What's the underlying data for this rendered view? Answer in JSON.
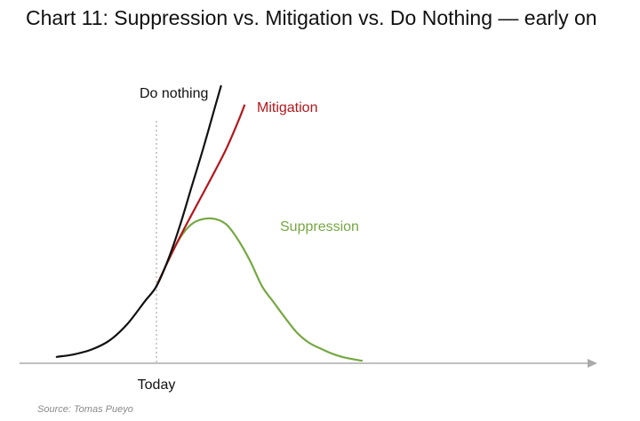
{
  "chart_data": {
    "type": "line",
    "title": "Chart 11: Suppression vs. Mitigation vs. Do Nothing — early on",
    "xlabel": "",
    "ylabel": "",
    "xlim": [
      -1.0,
      2.2
    ],
    "ylim": [
      0,
      100
    ],
    "grid": false,
    "x_tick_labels": [
      {
        "x": 0,
        "label": "Today"
      }
    ],
    "reference_lines": [
      {
        "type": "vertical",
        "x": 0,
        "style": "dotted"
      }
    ],
    "series": [
      {
        "name": "Do nothing",
        "color": "#111111",
        "x": [
          -0.85,
          -0.7,
          -0.55,
          -0.4,
          -0.25,
          -0.1,
          0.0,
          0.1,
          0.2,
          0.3,
          0.4,
          0.5,
          0.55
        ],
        "y": [
          2.5,
          3.5,
          5.4,
          8.9,
          15.2,
          24.1,
          30.0,
          40.4,
          53.6,
          68.8,
          83.9,
          100.0,
          108.0
        ]
      },
      {
        "name": "Mitigation",
        "color": "#b3171d",
        "x": [
          0.0,
          0.1,
          0.2,
          0.3,
          0.4,
          0.5,
          0.6,
          0.7,
          0.75
        ],
        "y": [
          30.0,
          39.9,
          49.2,
          57.9,
          66.4,
          75.0,
          84.0,
          94.6,
          100.5
        ]
      },
      {
        "name": "Suppression",
        "color": "#76a843",
        "x": [
          0.0,
          0.1,
          0.2,
          0.3,
          0.4,
          0.5,
          0.6,
          0.7,
          0.8,
          0.9,
          1.0,
          1.1,
          1.2,
          1.3,
          1.4,
          1.5,
          1.6,
          1.75
        ],
        "y": [
          30.0,
          39.9,
          48.8,
          54.2,
          56.2,
          56.2,
          53.9,
          47.8,
          39.7,
          30.0,
          23.7,
          17.5,
          11.8,
          8.0,
          5.7,
          3.7,
          2.3,
          1.0
        ]
      }
    ],
    "colors": {
      "axis": "#aaaaaa",
      "reference_line": "#999999",
      "title": "#111111",
      "source": "#8a8a8a"
    }
  },
  "source": "Source: Tomas Pueyo"
}
